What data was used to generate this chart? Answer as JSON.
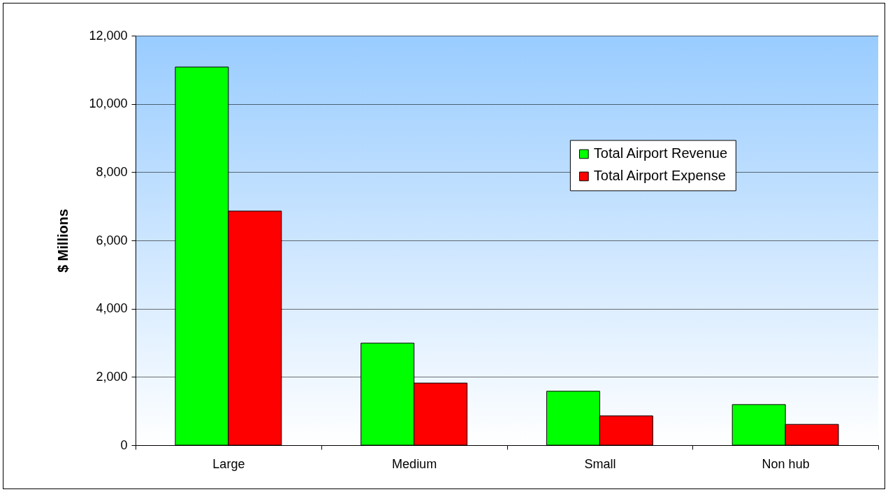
{
  "chart_data": {
    "type": "bar",
    "ylabel": "$ Millions",
    "categories": [
      "Large",
      "Medium",
      "Small",
      "Non hub"
    ],
    "series": [
      {
        "name": "Total Airport Revenue",
        "color": "#00ff00",
        "values": [
          11080,
          2990,
          1580,
          1190
        ]
      },
      {
        "name": "Total Airport Expense",
        "color": "#ff0000",
        "values": [
          6860,
          1820,
          860,
          610
        ]
      }
    ],
    "ylim": [
      0,
      12000
    ],
    "yticks": [
      0,
      {
        "value": 2000,
        "label": "2,000"
      },
      {
        "value": 4000,
        "label": "4,000"
      },
      {
        "value": 6000,
        "label": "6,000"
      },
      {
        "value": 8000,
        "label": "8,000"
      },
      {
        "value": 10000,
        "label": "10,000"
      },
      {
        "value": 12000,
        "label": "12,000"
      }
    ],
    "grid": "y",
    "legend": "top right"
  }
}
